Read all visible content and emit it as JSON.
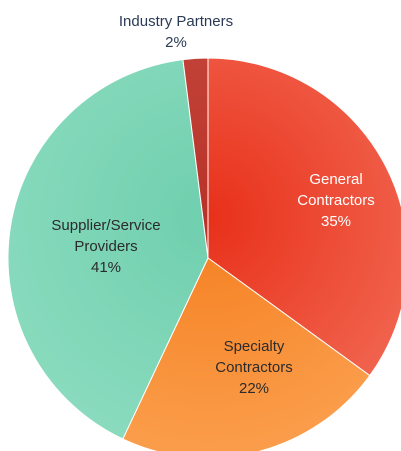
{
  "chart_data": {
    "type": "pie",
    "title": "",
    "colors": [
      "#e8301a",
      "#f57f20",
      "#6fcfae",
      "#b7332a"
    ],
    "slices": [
      {
        "label_lines": [
          "General",
          "Contractors"
        ],
        "value": 35,
        "display": "35%",
        "color": "#e8301a",
        "highlight": "#f26b55",
        "label_color": "#ffffff"
      },
      {
        "label_lines": [
          "Specialty",
          "Contractors"
        ],
        "value": 22,
        "display": "22%",
        "color": "#f57f20",
        "highlight": "#fba04f",
        "label_color": "#2b2b2b"
      },
      {
        "label_lines": [
          "Supplier/Service",
          "Providers"
        ],
        "value": 41,
        "display": "41%",
        "color": "#6fcfae",
        "highlight": "#8ddcc0",
        "label_color": "#2b2b2b"
      },
      {
        "label_lines": [
          "Industry Partners"
        ],
        "value": 2,
        "display": "2%",
        "color": "#b7332a",
        "highlight": "#c94a3f",
        "label_color": "#2b3a55"
      }
    ]
  }
}
